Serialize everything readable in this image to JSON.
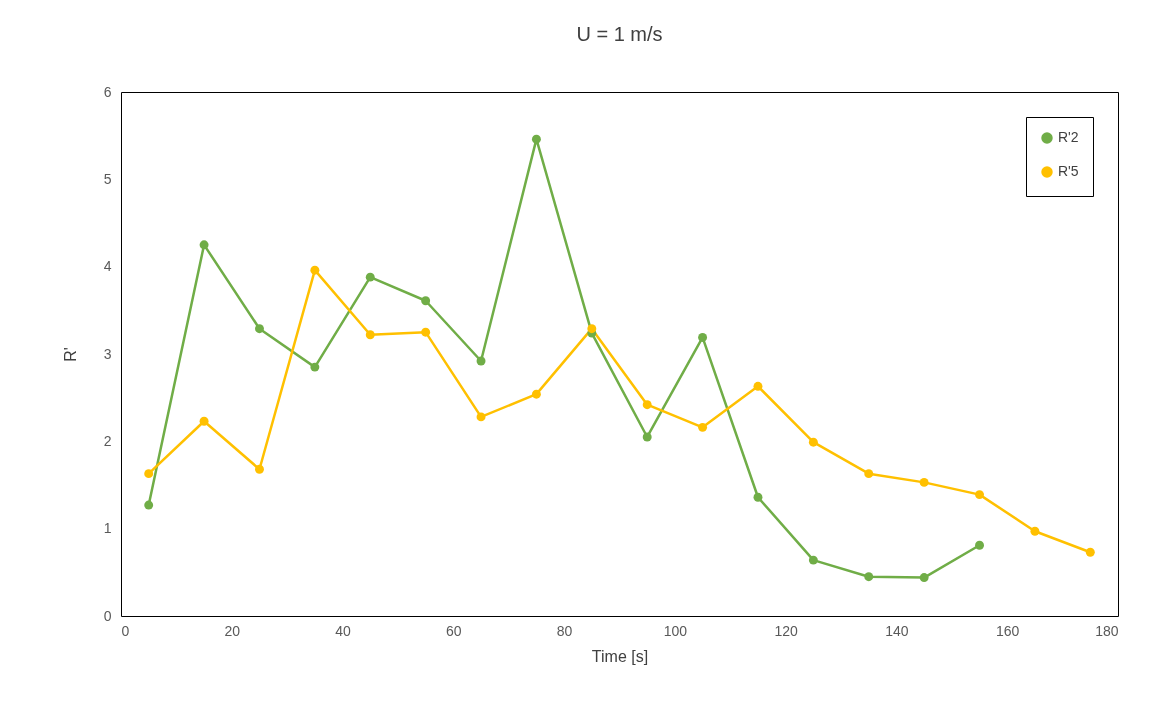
{
  "chart_data": {
    "type": "line",
    "title": "U = 1 m/s",
    "xlabel": "Time [s]",
    "ylabel": "R'",
    "x": [
      5,
      15,
      25,
      35,
      45,
      55,
      65,
      75,
      85,
      95,
      105,
      115,
      125,
      135,
      145,
      155,
      165,
      175
    ],
    "series": [
      {
        "name": "R'2",
        "color": "#70ad47",
        "x": [
          5,
          15,
          25,
          35,
          45,
          55,
          65,
          75,
          85,
          95,
          105,
          115,
          125,
          135,
          145,
          155
        ],
        "values": [
          1.27,
          4.25,
          3.29,
          2.85,
          3.88,
          3.61,
          2.92,
          5.46,
          3.24,
          2.05,
          3.19,
          1.36,
          0.64,
          0.45,
          0.44,
          0.81
        ]
      },
      {
        "name": "R'5",
        "color": "#ffc000",
        "values": [
          1.63,
          2.23,
          1.68,
          3.96,
          3.22,
          3.25,
          2.28,
          2.54,
          3.29,
          2.42,
          2.16,
          2.63,
          1.99,
          1.63,
          1.53,
          1.39,
          0.97,
          0.73
        ]
      }
    ],
    "xlim": [
      0,
      180
    ],
    "xticks": [
      0,
      20,
      40,
      60,
      80,
      100,
      120,
      140,
      160,
      180
    ],
    "ylim": [
      0,
      6
    ],
    "yticks": [
      0,
      1,
      2,
      3,
      4,
      5,
      6
    ],
    "legend": "top right",
    "marker": "circle",
    "line_style": "solid",
    "grid": false
  }
}
